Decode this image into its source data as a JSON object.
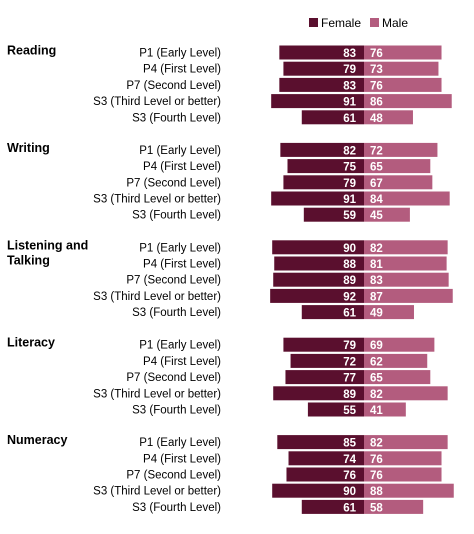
{
  "chart_data": {
    "type": "bar",
    "legend": [
      {
        "name": "Female",
        "color": "#5a0f2e"
      },
      {
        "name": "Male",
        "color": "#b35c7e"
      }
    ],
    "legend_position": "top-right",
    "groups": [
      {
        "title": "Reading",
        "categories": [
          "P1 (Early Level)",
          "P4 (First Level)",
          "P7 (Second Level)",
          "S3 (Third Level or better)",
          "S3 (Fourth Level)"
        ],
        "female": [
          83,
          79,
          83,
          91,
          61
        ],
        "male": [
          76,
          73,
          76,
          86,
          48
        ]
      },
      {
        "title": "Writing",
        "categories": [
          "P1 (Early Level)",
          "P4 (First Level)",
          "P7 (Second Level)",
          "S3 (Third Level or better)",
          "S3 (Fourth Level)"
        ],
        "female": [
          82,
          75,
          79,
          91,
          59
        ],
        "male": [
          72,
          65,
          67,
          84,
          45
        ]
      },
      {
        "title": "Listening and Talking",
        "categories": [
          "P1 (Early Level)",
          "P4 (First Level)",
          "P7 (Second Level)",
          "S3 (Third Level or better)",
          "S3 (Fourth Level)"
        ],
        "female": [
          90,
          88,
          89,
          92,
          61
        ],
        "male": [
          82,
          81,
          83,
          87,
          49
        ]
      },
      {
        "title": "Literacy",
        "categories": [
          "P1 (Early Level)",
          "P4 (First Level)",
          "P7 (Second Level)",
          "S3 (Third Level or better)",
          "S3 (Fourth Level)"
        ],
        "female": [
          79,
          72,
          77,
          89,
          55
        ],
        "male": [
          69,
          62,
          65,
          82,
          41
        ]
      },
      {
        "title": "Numeracy",
        "categories": [
          "P1 (Early Level)",
          "P4 (First Level)",
          "P7 (Second Level)",
          "S3 (Third Level or better)",
          "S3 (Fourth Level)"
        ],
        "female": [
          85,
          74,
          76,
          90,
          61
        ],
        "male": [
          82,
          76,
          76,
          88,
          58
        ]
      }
    ]
  }
}
